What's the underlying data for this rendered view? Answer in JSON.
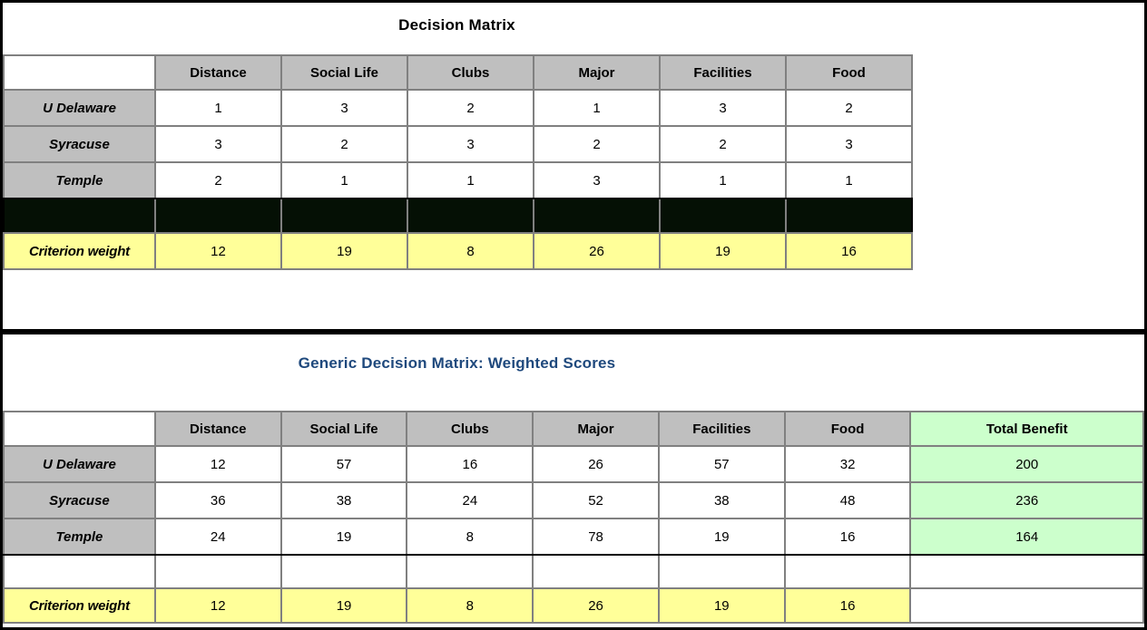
{
  "colors": {
    "header_fill": "#BFBFBF",
    "weight_fill": "#FFFF99",
    "total_fill": "#CCFFCC",
    "spacer_fill": "#051005",
    "bottom_title_color": "#1F497D",
    "grid_line": "#808080",
    "border": "#000000"
  },
  "top_table": {
    "title": "Decision Matrix",
    "columns": [
      "Distance",
      "Social Life",
      "Clubs",
      "Major",
      "Facilities",
      "Food"
    ],
    "rows": [
      {
        "label": "U Delaware",
        "values": [
          1,
          3,
          2,
          1,
          3,
          2
        ]
      },
      {
        "label": "Syracuse",
        "values": [
          3,
          2,
          3,
          2,
          2,
          3
        ]
      },
      {
        "label": "Temple",
        "values": [
          2,
          1,
          1,
          3,
          1,
          1
        ]
      }
    ],
    "spacer": "black",
    "weight_label": "Criterion weight",
    "weights": [
      12,
      19,
      8,
      26,
      19,
      16
    ]
  },
  "bottom_table": {
    "title": "Generic Decision Matrix: Weighted Scores",
    "columns": [
      "Distance",
      "Social Life",
      "Clubs",
      "Major",
      "Facilities",
      "Food"
    ],
    "total_column": "Total Benefit",
    "rows": [
      {
        "label": "U Delaware",
        "values": [
          12,
          57,
          16,
          26,
          57,
          32
        ],
        "total": 200
      },
      {
        "label": "Syracuse",
        "values": [
          36,
          38,
          24,
          52,
          38,
          48
        ],
        "total": 236
      },
      {
        "label": "Temple",
        "values": [
          24,
          19,
          8,
          78,
          19,
          16
        ],
        "total": 164
      }
    ],
    "spacer": "white",
    "weight_label": "Criterion weight",
    "weights": [
      12,
      19,
      8,
      26,
      19,
      16
    ]
  }
}
